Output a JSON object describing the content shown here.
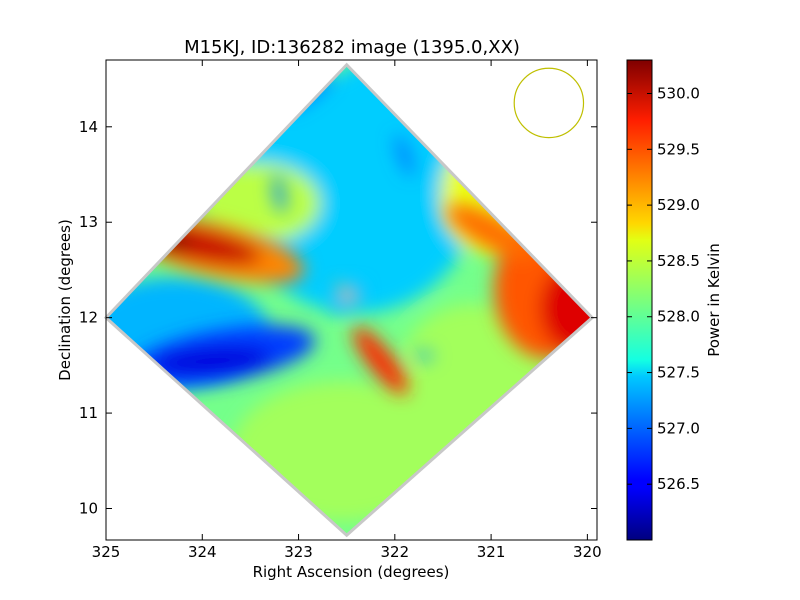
{
  "chart_data": {
    "type": "heatmap",
    "title": "M15KJ, ID:136282 image (1395.0,XX)",
    "xlabel": "Right Ascension (degrees)",
    "ylabel": "Declination (degrees)",
    "xlim": [
      325.0,
      319.9
    ],
    "ylim": [
      9.67,
      14.7
    ],
    "x_ticks": [
      325,
      324,
      323,
      322,
      321,
      320
    ],
    "y_ticks": [
      10,
      11,
      12,
      13,
      14
    ],
    "x_tick_labels": [
      "325",
      "324",
      "323",
      "322",
      "321",
      "320"
    ],
    "y_tick_labels": [
      "10",
      "11",
      "12",
      "13",
      "14"
    ],
    "colorbar": {
      "label": "Power in Kelvin",
      "range": [
        526.0,
        530.3
      ],
      "ticks": [
        526.5,
        527.0,
        527.5,
        528.0,
        528.5,
        529.0,
        529.5,
        530.0
      ],
      "tick_labels": [
        "526.5",
        "527.0",
        "527.5",
        "528.0",
        "528.5",
        "529.0",
        "529.5",
        "530.0"
      ],
      "colormap": "jet"
    },
    "map_footprint": {
      "shape": "diamond",
      "top": [
        322.5,
        14.65
      ],
      "right": [
        319.95,
        12.0
      ],
      "bottom": [
        322.5,
        9.72
      ],
      "left": [
        325.0,
        12.0
      ]
    },
    "beam_circle": {
      "color": "#bfbf00",
      "center": [
        320.4,
        14.25
      ],
      "radius_deg": 0.36
    },
    "features": [
      {
        "name": "hot-west-lobe",
        "ra": 323.9,
        "dec": 12.75,
        "value": 530.0
      },
      {
        "name": "hot-east-lobe",
        "ra": 320.3,
        "dec": 12.4,
        "value": 529.8
      },
      {
        "name": "cold-west-lobe",
        "ra": 323.9,
        "dec": 11.55,
        "value": 526.5
      },
      {
        "name": "warm-filament",
        "ra": 322.1,
        "dec": 11.5,
        "value": 529.6
      },
      {
        "name": "cool-north-band",
        "ra": 322.5,
        "dec": 13.7,
        "value": 527.4
      }
    ],
    "grid": false,
    "legend": "none"
  },
  "colors": {
    "beam_circle": "#bfbf00",
    "frame": "#000000",
    "background": "#ffffff"
  }
}
